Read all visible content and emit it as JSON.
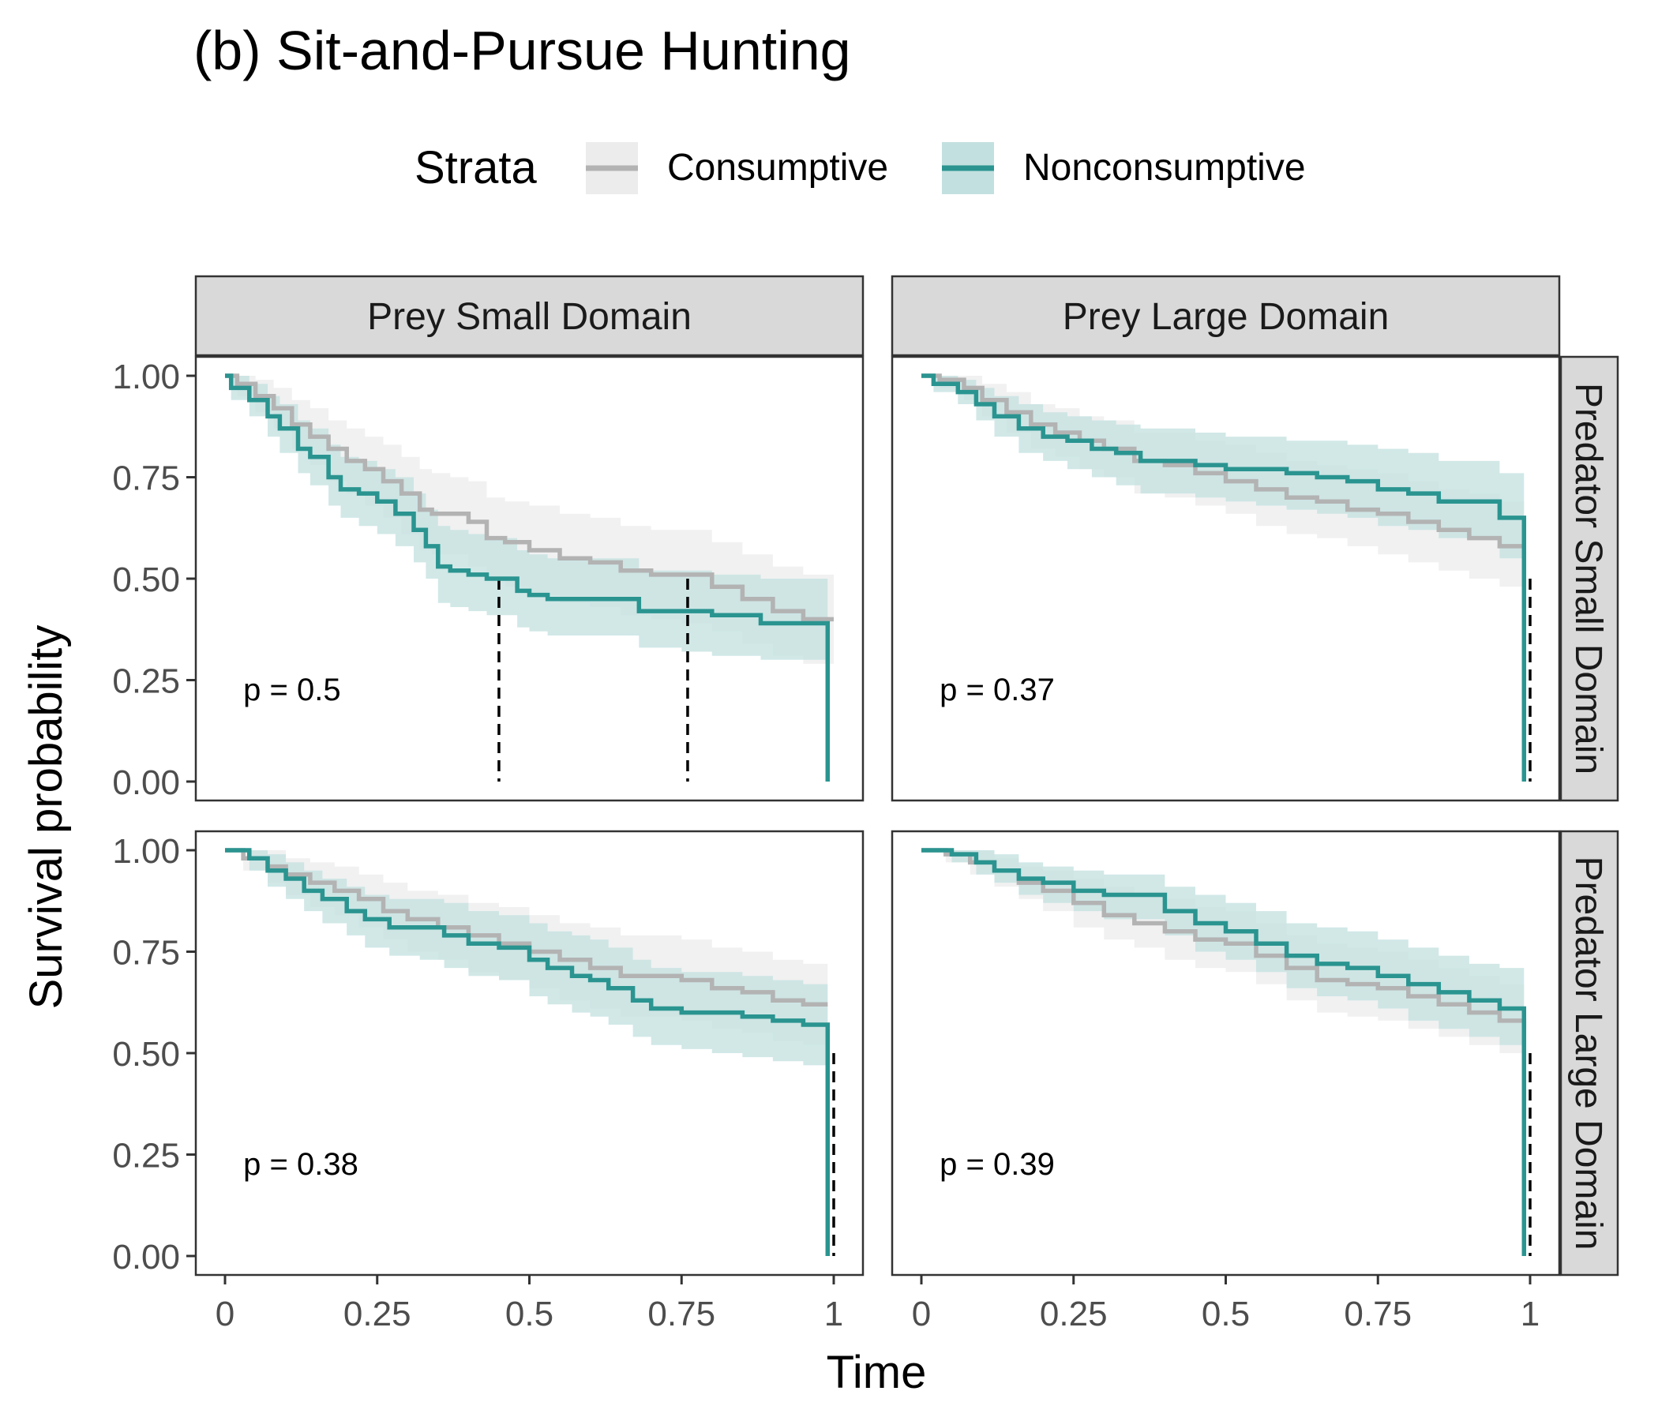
{
  "title": "(b) Sit-and-Pursue Hunting",
  "legend": {
    "title": "Strata",
    "position": "top",
    "items": [
      {
        "label": "Consumptive",
        "line_color": "#b3b3b3",
        "fill_color": "#ececec"
      },
      {
        "label": "Nonconsumptive",
        "line_color": "#2a9490",
        "fill_color": "#c2e0df"
      }
    ]
  },
  "chart_data": {
    "type": "line",
    "subtype": "kaplan-meier survival curves (step) with confidence bands, faceted 2x2",
    "xlabel": "Time",
    "ylabel": "Survival probability",
    "xlim": [
      0,
      1
    ],
    "ylim": [
      0,
      1
    ],
    "x_ticks": [
      "0",
      "0.25",
      "0.5",
      "0.75",
      "1"
    ],
    "y_ticks": [
      "0.00",
      "0.25",
      "0.50",
      "0.75",
      "1.00"
    ],
    "column_facets": [
      "Prey Small Domain",
      "Prey Large Domain"
    ],
    "row_facets": [
      "Predator Small Domain",
      "Predator Large Domain"
    ],
    "grid": false,
    "panels": [
      {
        "row": 0,
        "col": 0,
        "p_label": "p = 0.5",
        "median_lines": [
          0.45,
          0.76
        ],
        "series": [
          {
            "name": "Consumptive",
            "x": [
              0,
              0.02,
              0.05,
              0.08,
              0.11,
              0.14,
              0.17,
              0.2,
              0.23,
              0.26,
              0.29,
              0.32,
              0.34,
              0.37,
              0.4,
              0.43,
              0.46,
              0.5,
              0.55,
              0.6,
              0.65,
              0.7,
              0.75,
              0.8,
              0.85,
              0.9,
              0.95,
              1.0
            ],
            "y": [
              1.0,
              0.98,
              0.95,
              0.92,
              0.88,
              0.85,
              0.82,
              0.79,
              0.77,
              0.74,
              0.71,
              0.67,
              0.66,
              0.66,
              0.64,
              0.6,
              0.59,
              0.57,
              0.55,
              0.54,
              0.52,
              0.51,
              0.51,
              0.48,
              0.45,
              0.42,
              0.4,
              0.4
            ],
            "lower": [
              1.0,
              0.95,
              0.91,
              0.87,
              0.82,
              0.78,
              0.74,
              0.71,
              0.68,
              0.65,
              0.61,
              0.57,
              0.56,
              0.56,
              0.53,
              0.5,
              0.48,
              0.46,
              0.44,
              0.43,
              0.41,
              0.4,
              0.39,
              0.37,
              0.34,
              0.31,
              0.29,
              0.29
            ],
            "upper": [
              1.0,
              1.0,
              0.99,
              0.97,
              0.94,
              0.92,
              0.89,
              0.87,
              0.85,
              0.83,
              0.8,
              0.77,
              0.76,
              0.75,
              0.74,
              0.7,
              0.69,
              0.68,
              0.66,
              0.65,
              0.63,
              0.62,
              0.62,
              0.59,
              0.56,
              0.53,
              0.51,
              0.51
            ]
          },
          {
            "name": "Nonconsumptive",
            "x": [
              0,
              0.01,
              0.04,
              0.07,
              0.09,
              0.12,
              0.14,
              0.17,
              0.19,
              0.22,
              0.25,
              0.28,
              0.31,
              0.33,
              0.35,
              0.37,
              0.4,
              0.43,
              0.48,
              0.5,
              0.53,
              0.6,
              0.68,
              0.7,
              0.75,
              0.8,
              0.88,
              0.99
            ],
            "y": [
              1.0,
              0.97,
              0.94,
              0.9,
              0.87,
              0.82,
              0.8,
              0.75,
              0.72,
              0.71,
              0.69,
              0.66,
              0.62,
              0.58,
              0.53,
              0.52,
              0.51,
              0.5,
              0.47,
              0.46,
              0.45,
              0.45,
              0.42,
              0.42,
              0.42,
              0.41,
              0.39,
              0.39
            ],
            "lower": [
              1.0,
              0.94,
              0.9,
              0.85,
              0.81,
              0.76,
              0.73,
              0.68,
              0.65,
              0.63,
              0.61,
              0.58,
              0.54,
              0.5,
              0.44,
              0.43,
              0.42,
              0.41,
              0.38,
              0.37,
              0.36,
              0.36,
              0.33,
              0.33,
              0.32,
              0.31,
              0.3,
              0.3
            ],
            "upper": [
              1.0,
              1.0,
              0.98,
              0.95,
              0.93,
              0.89,
              0.87,
              0.83,
              0.8,
              0.79,
              0.77,
              0.75,
              0.71,
              0.67,
              0.63,
              0.62,
              0.61,
              0.6,
              0.57,
              0.56,
              0.55,
              0.55,
              0.52,
              0.52,
              0.52,
              0.51,
              0.5,
              0.5
            ],
            "drop_to": 0
          }
        ]
      },
      {
        "row": 0,
        "col": 1,
        "p_label": "p = 0.37",
        "median_lines": [
          1.0
        ],
        "series": [
          {
            "name": "Consumptive",
            "x": [
              0,
              0.03,
              0.07,
              0.1,
              0.14,
              0.18,
              0.22,
              0.26,
              0.3,
              0.35,
              0.4,
              0.45,
              0.5,
              0.55,
              0.6,
              0.65,
              0.7,
              0.75,
              0.8,
              0.85,
              0.9,
              0.95,
              0.99
            ],
            "y": [
              1.0,
              0.99,
              0.97,
              0.94,
              0.91,
              0.88,
              0.86,
              0.84,
              0.82,
              0.79,
              0.78,
              0.76,
              0.74,
              0.72,
              0.7,
              0.69,
              0.67,
              0.66,
              0.64,
              0.62,
              0.6,
              0.58,
              0.58
            ],
            "lower": [
              1.0,
              0.97,
              0.94,
              0.9,
              0.86,
              0.82,
              0.8,
              0.77,
              0.75,
              0.71,
              0.7,
              0.68,
              0.66,
              0.63,
              0.61,
              0.6,
              0.58,
              0.56,
              0.54,
              0.52,
              0.5,
              0.48,
              0.48
            ],
            "upper": [
              1.0,
              1.0,
              1.0,
              0.98,
              0.96,
              0.93,
              0.92,
              0.9,
              0.89,
              0.86,
              0.86,
              0.84,
              0.83,
              0.81,
              0.79,
              0.78,
              0.77,
              0.76,
              0.74,
              0.72,
              0.71,
              0.69,
              0.69
            ]
          },
          {
            "name": "Nonconsumptive",
            "x": [
              0,
              0.02,
              0.06,
              0.09,
              0.12,
              0.16,
              0.2,
              0.24,
              0.28,
              0.32,
              0.36,
              0.4,
              0.45,
              0.5,
              0.55,
              0.6,
              0.65,
              0.7,
              0.75,
              0.8,
              0.85,
              0.9,
              0.95,
              0.99
            ],
            "y": [
              1.0,
              0.98,
              0.96,
              0.93,
              0.9,
              0.87,
              0.85,
              0.84,
              0.82,
              0.81,
              0.79,
              0.79,
              0.78,
              0.77,
              0.77,
              0.76,
              0.75,
              0.74,
              0.72,
              0.71,
              0.69,
              0.69,
              0.65,
              0.65
            ],
            "lower": [
              1.0,
              0.96,
              0.93,
              0.89,
              0.85,
              0.81,
              0.79,
              0.77,
              0.75,
              0.73,
              0.71,
              0.71,
              0.7,
              0.69,
              0.68,
              0.67,
              0.66,
              0.65,
              0.63,
              0.62,
              0.6,
              0.6,
              0.55,
              0.55
            ],
            "upper": [
              1.0,
              1.0,
              0.99,
              0.97,
              0.95,
              0.93,
              0.91,
              0.9,
              0.89,
              0.88,
              0.87,
              0.87,
              0.86,
              0.85,
              0.85,
              0.84,
              0.84,
              0.83,
              0.82,
              0.81,
              0.79,
              0.79,
              0.76,
              0.76
            ],
            "drop_to": 0
          }
        ]
      },
      {
        "row": 1,
        "col": 0,
        "p_label": "p = 0.38",
        "median_lines": [
          1.0
        ],
        "series": [
          {
            "name": "Consumptive",
            "x": [
              0,
              0.03,
              0.07,
              0.1,
              0.14,
              0.18,
              0.22,
              0.26,
              0.3,
              0.35,
              0.4,
              0.45,
              0.5,
              0.55,
              0.6,
              0.65,
              0.7,
              0.75,
              0.8,
              0.85,
              0.9,
              0.95,
              0.99
            ],
            "y": [
              1.0,
              0.98,
              0.96,
              0.94,
              0.92,
              0.9,
              0.88,
              0.85,
              0.83,
              0.81,
              0.79,
              0.77,
              0.75,
              0.73,
              0.71,
              0.69,
              0.69,
              0.68,
              0.66,
              0.65,
              0.63,
              0.62,
              0.62
            ],
            "lower": [
              1.0,
              0.95,
              0.92,
              0.89,
              0.86,
              0.84,
              0.81,
              0.78,
              0.75,
              0.73,
              0.7,
              0.68,
              0.66,
              0.63,
              0.61,
              0.59,
              0.59,
              0.58,
              0.56,
              0.55,
              0.53,
              0.52,
              0.52
            ],
            "upper": [
              1.0,
              1.0,
              1.0,
              0.98,
              0.97,
              0.96,
              0.94,
              0.92,
              0.9,
              0.89,
              0.87,
              0.86,
              0.84,
              0.82,
              0.81,
              0.79,
              0.79,
              0.78,
              0.76,
              0.75,
              0.73,
              0.72,
              0.72
            ]
          },
          {
            "name": "Nonconsumptive",
            "x": [
              0,
              0.04,
              0.07,
              0.1,
              0.13,
              0.16,
              0.2,
              0.23,
              0.27,
              0.32,
              0.36,
              0.4,
              0.45,
              0.5,
              0.53,
              0.57,
              0.6,
              0.63,
              0.67,
              0.7,
              0.75,
              0.8,
              0.85,
              0.9,
              0.95,
              0.99
            ],
            "y": [
              1.0,
              0.98,
              0.95,
              0.93,
              0.9,
              0.88,
              0.85,
              0.83,
              0.81,
              0.81,
              0.79,
              0.77,
              0.76,
              0.73,
              0.71,
              0.69,
              0.68,
              0.66,
              0.63,
              0.61,
              0.6,
              0.6,
              0.59,
              0.58,
              0.57,
              0.55
            ],
            "lower": [
              1.0,
              0.95,
              0.91,
              0.88,
              0.85,
              0.82,
              0.79,
              0.76,
              0.74,
              0.73,
              0.71,
              0.69,
              0.68,
              0.64,
              0.62,
              0.6,
              0.59,
              0.57,
              0.54,
              0.52,
              0.51,
              0.5,
              0.49,
              0.48,
              0.47,
              0.45
            ],
            "upper": [
              1.0,
              1.0,
              0.99,
              0.97,
              0.95,
              0.93,
              0.91,
              0.89,
              0.88,
              0.88,
              0.87,
              0.85,
              0.84,
              0.82,
              0.8,
              0.79,
              0.78,
              0.76,
              0.73,
              0.71,
              0.7,
              0.7,
              0.69,
              0.68,
              0.67,
              0.65
            ],
            "drop_to": 0
          }
        ]
      },
      {
        "row": 1,
        "col": 1,
        "p_label": "p = 0.39",
        "median_lines": [
          1.0
        ],
        "series": [
          {
            "name": "Consumptive",
            "x": [
              0,
              0.04,
              0.08,
              0.12,
              0.16,
              0.2,
              0.25,
              0.3,
              0.35,
              0.4,
              0.45,
              0.5,
              0.55,
              0.6,
              0.65,
              0.7,
              0.75,
              0.8,
              0.85,
              0.9,
              0.95,
              0.99
            ],
            "y": [
              1.0,
              0.99,
              0.97,
              0.95,
              0.92,
              0.9,
              0.87,
              0.84,
              0.82,
              0.8,
              0.78,
              0.77,
              0.74,
              0.71,
              0.68,
              0.67,
              0.66,
              0.64,
              0.62,
              0.6,
              0.58,
              0.56
            ],
            "lower": [
              1.0,
              0.97,
              0.94,
              0.91,
              0.88,
              0.85,
              0.81,
              0.78,
              0.76,
              0.73,
              0.71,
              0.7,
              0.67,
              0.63,
              0.6,
              0.59,
              0.58,
              0.56,
              0.54,
              0.52,
              0.5,
              0.48
            ],
            "upper": [
              1.0,
              1.0,
              1.0,
              0.98,
              0.96,
              0.95,
              0.93,
              0.91,
              0.89,
              0.88,
              0.86,
              0.85,
              0.82,
              0.79,
              0.77,
              0.76,
              0.75,
              0.73,
              0.71,
              0.69,
              0.67,
              0.65
            ]
          },
          {
            "name": "Nonconsumptive",
            "x": [
              0,
              0.05,
              0.09,
              0.12,
              0.16,
              0.2,
              0.25,
              0.3,
              0.35,
              0.4,
              0.45,
              0.5,
              0.55,
              0.6,
              0.65,
              0.7,
              0.75,
              0.8,
              0.85,
              0.9,
              0.95,
              0.99
            ],
            "y": [
              1.0,
              0.99,
              0.97,
              0.95,
              0.93,
              0.92,
              0.9,
              0.89,
              0.89,
              0.85,
              0.82,
              0.8,
              0.77,
              0.74,
              0.72,
              0.71,
              0.69,
              0.67,
              0.65,
              0.63,
              0.61,
              0.61
            ],
            "lower": [
              1.0,
              0.97,
              0.94,
              0.92,
              0.89,
              0.87,
              0.85,
              0.83,
              0.83,
              0.79,
              0.75,
              0.73,
              0.7,
              0.66,
              0.64,
              0.63,
              0.61,
              0.58,
              0.56,
              0.54,
              0.52,
              0.52
            ],
            "upper": [
              1.0,
              1.0,
              1.0,
              0.99,
              0.97,
              0.96,
              0.95,
              0.94,
              0.94,
              0.91,
              0.89,
              0.87,
              0.85,
              0.82,
              0.81,
              0.8,
              0.78,
              0.76,
              0.74,
              0.72,
              0.71,
              0.71
            ],
            "drop_to": 0
          }
        ]
      }
    ]
  }
}
